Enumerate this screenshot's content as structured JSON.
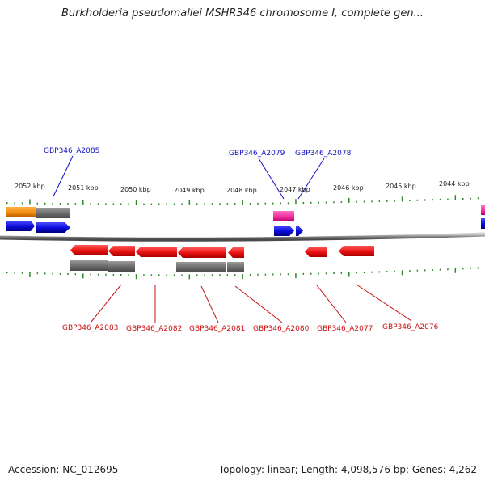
{
  "title": "Burkholderia pseudomallei MSHR346 chromosome I, complete gen...",
  "accession": "Accession: NC_012695",
  "summary": "Topology: linear; Length: 4,098,576 bp; Genes: 4,262",
  "colors": {
    "axis": "#888888",
    "tick": "#2a8a2a",
    "forward_cds": "#0a0ad8",
    "reverse_cds": "#e81010",
    "gene_block": "#6e6e6e",
    "orange_block": "#f08c10",
    "pink_block": "#ee2a9a",
    "forward_label": "#1010c0",
    "reverse_label": "#c81010"
  },
  "scale": {
    "ticks": [
      "2052 kbp",
      "2051 kbp",
      "2050 kbp",
      "2049 kbp",
      "2048 kbp",
      "2047 kbp",
      "2046 kbp",
      "2045 kbp",
      "2044 kbp"
    ]
  },
  "labels": {
    "forward": [
      "GBP346_A2085",
      "GBP346_A2079",
      "GBP346_A2078"
    ],
    "reverse": [
      "GBP346_A2083",
      "GBP346_A2082",
      "GBP346_A2081",
      "GBP346_A2080",
      "GBP346_A2077",
      "GBP346_A2076"
    ]
  }
}
